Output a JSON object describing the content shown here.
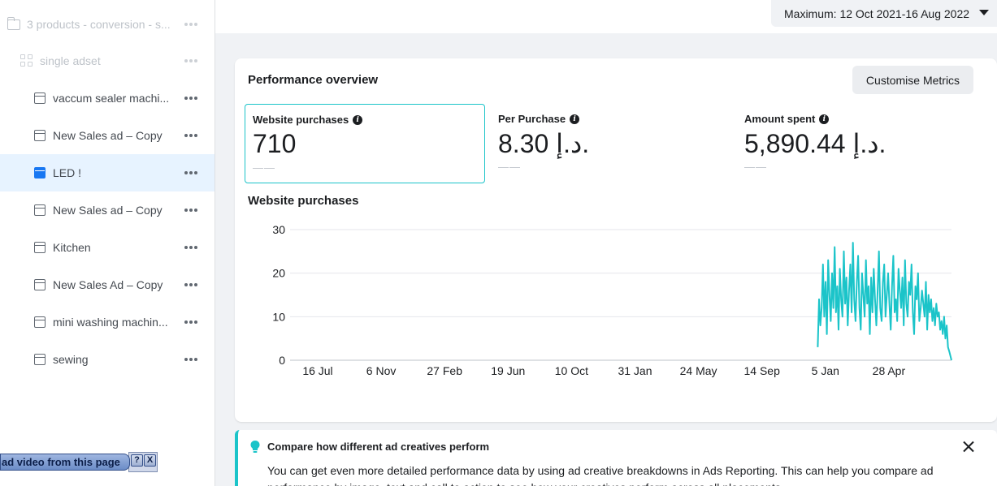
{
  "sidebar": {
    "campaign": {
      "label": "3 products - conversion - s..."
    },
    "adset": {
      "label": "single adset"
    },
    "ads": [
      {
        "label": "vaccum sealer machi...",
        "selected": false
      },
      {
        "label": "New Sales ad – Copy",
        "selected": false
      },
      {
        "label": "LED !",
        "selected": true
      },
      {
        "label": "New Sales ad – Copy",
        "selected": false
      },
      {
        "label": "Kitchen",
        "selected": false
      },
      {
        "label": "New Sales Ad – Copy",
        "selected": false
      },
      {
        "label": "mini washing machin...",
        "selected": false
      },
      {
        "label": "sewing",
        "selected": false
      }
    ]
  },
  "header": {
    "date_range": "Maximum: 12 Oct 2021-16 Aug 2022"
  },
  "overview": {
    "title": "Performance overview",
    "customise_label": "Customise Metrics",
    "metrics": [
      {
        "label": "Website purchases",
        "value": "710",
        "sub": "——",
        "active": true
      },
      {
        "label": "Per Purchase",
        "value": "8.30 د.إ.",
        "sub": "——",
        "active": false
      },
      {
        "label": "Amount spent",
        "value": "5,890.44 د.إ.",
        "sub": "——",
        "active": false
      }
    ]
  },
  "chart_data": {
    "type": "line",
    "title": "Website purchases",
    "xlabel": "",
    "ylabel": "",
    "y_ticks": [
      0,
      10,
      20,
      30
    ],
    "ylim": [
      0,
      30
    ],
    "x_tick_labels": [
      "16 Jul",
      "6 Nov",
      "27 Feb",
      "19 Jun",
      "10 Oct",
      "31 Jan",
      "24 May",
      "14 Sep",
      "5 Jan",
      "28 Apr"
    ],
    "x_range": [
      "2018-06-15",
      "2022-08-16"
    ],
    "grid": true,
    "color": "#1bc4c9",
    "series": [
      {
        "x": [
          "2021-10-12",
          "2021-10-15",
          "2021-10-18",
          "2021-10-21",
          "2021-10-24",
          "2021-10-27",
          "2021-10-30",
          "2021-11-02",
          "2021-11-05",
          "2021-11-08",
          "2021-11-11",
          "2021-11-14",
          "2021-11-17",
          "2021-11-20",
          "2021-11-23",
          "2021-11-26",
          "2021-11-29",
          "2021-12-02",
          "2021-12-05",
          "2021-12-08",
          "2021-12-11",
          "2021-12-14",
          "2021-12-17",
          "2021-12-20",
          "2021-12-23",
          "2021-12-26",
          "2021-12-29",
          "2022-01-01",
          "2022-01-04",
          "2022-01-07",
          "2022-01-10",
          "2022-01-13",
          "2022-01-16",
          "2022-01-19",
          "2022-01-22",
          "2022-01-25",
          "2022-01-28",
          "2022-01-31",
          "2022-02-03",
          "2022-02-06",
          "2022-02-09",
          "2022-02-12",
          "2022-02-15",
          "2022-02-18",
          "2022-02-21",
          "2022-02-24",
          "2022-02-27",
          "2022-03-02",
          "2022-03-05",
          "2022-03-08",
          "2022-03-11",
          "2022-03-14",
          "2022-03-17",
          "2022-03-20",
          "2022-03-23",
          "2022-03-26",
          "2022-03-29",
          "2022-04-01",
          "2022-04-04",
          "2022-04-07",
          "2022-04-10",
          "2022-04-13",
          "2022-04-16",
          "2022-04-19",
          "2022-04-22",
          "2022-04-25",
          "2022-04-28",
          "2022-05-01",
          "2022-05-04",
          "2022-05-07",
          "2022-05-10",
          "2022-05-13",
          "2022-05-16",
          "2022-05-19",
          "2022-05-22",
          "2022-05-25",
          "2022-05-28",
          "2022-05-31",
          "2022-06-03",
          "2022-06-06",
          "2022-06-09",
          "2022-06-12",
          "2022-06-15",
          "2022-06-18",
          "2022-06-21",
          "2022-06-24",
          "2022-06-27",
          "2022-06-30",
          "2022-07-03",
          "2022-07-06",
          "2022-07-09",
          "2022-07-12",
          "2022-07-15",
          "2022-07-18",
          "2022-07-21",
          "2022-07-24",
          "2022-07-27",
          "2022-07-30",
          "2022-08-02",
          "2022-08-05",
          "2022-08-08",
          "2022-08-11",
          "2022-08-16"
        ],
        "values": [
          3,
          14,
          8,
          12,
          22,
          10,
          18,
          6,
          23,
          15,
          9,
          20,
          12,
          26,
          11,
          17,
          7,
          21,
          14,
          10,
          25,
          13,
          19,
          8,
          16,
          22,
          11,
          27,
          14,
          9,
          18,
          24,
          12,
          7,
          20,
          15,
          10,
          23,
          13,
          17,
          6,
          19,
          11,
          21,
          14,
          8,
          16,
          25,
          12,
          9,
          18,
          22,
          10,
          15,
          20,
          13,
          7,
          17,
          24,
          11,
          14,
          9,
          21,
          16,
          12,
          19,
          8,
          23,
          13,
          10,
          18,
          15,
          22,
          11,
          6,
          17,
          14,
          20,
          9,
          12,
          16,
          13,
          10,
          18,
          7,
          15,
          11,
          14,
          9,
          12,
          8,
          13,
          10,
          11,
          7,
          9,
          6,
          10,
          5,
          8,
          3,
          2,
          0
        ]
      }
    ]
  },
  "tip": {
    "title": "Compare how different ad creatives perform",
    "body": "You can get even more detailed performance data by using ad creative breakdowns in Ads Reporting. This can help you compare ad performance by image, text and call to action to see how your creatives perform across all placements."
  },
  "download_bar": {
    "label": "ad video from this page",
    "help": "?",
    "close": "X"
  }
}
